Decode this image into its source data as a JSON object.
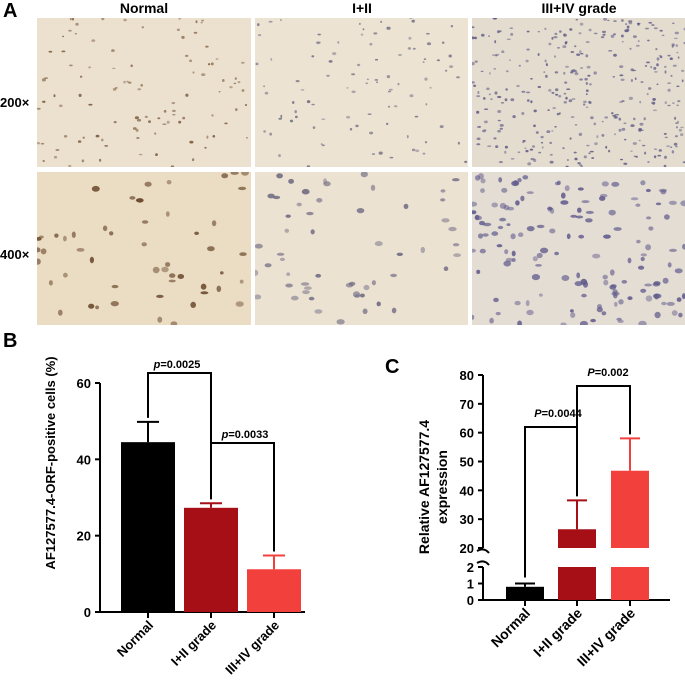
{
  "panel_a": {
    "letter": "A",
    "columns": [
      "Normal",
      "I+II",
      "III+IV grade"
    ],
    "rows": [
      "200×",
      "400×"
    ],
    "tiles": [
      {
        "column": "Normal",
        "magnification": "200×",
        "background": "#ece1cf",
        "cell_color": "#7a5a3c",
        "cell_density": 0.0032
      },
      {
        "column": "I+II",
        "magnification": "200×",
        "background": "#ece3d3",
        "cell_color": "#6e6c80",
        "cell_density": 0.003
      },
      {
        "column": "III+IV grade",
        "magnification": "200×",
        "background": "#e3dccf",
        "cell_color": "#5f5a86",
        "cell_density": 0.0105
      },
      {
        "column": "Normal",
        "magnification": "400×",
        "background": "#ebdcc4",
        "cell_color": "#6b4a2e",
        "cell_density": 0.0016
      },
      {
        "column": "I+II",
        "magnification": "400×",
        "background": "#ebe2d2",
        "cell_color": "#6d6880",
        "cell_density": 0.0017
      },
      {
        "column": "III+IV grade",
        "magnification": "400×",
        "background": "#e4ddd4",
        "cell_color": "#605a8c",
        "cell_density": 0.0046
      }
    ]
  },
  "panel_b": {
    "letter": "B",
    "ylabel": "AF127577.4-ORF-positive cells (%)",
    "p_labels": [
      {
        "prefix": "p",
        "text": "=0.0025"
      },
      {
        "prefix": "p",
        "text": "=0.0033"
      }
    ]
  },
  "panel_c": {
    "letter": "C",
    "ylabel_lines": [
      "Relative AF127577.4",
      "expression"
    ],
    "p_labels": [
      {
        "prefix": "P",
        "text": "=0.0044"
      },
      {
        "prefix": "P",
        "text": "=0.002"
      }
    ]
  },
  "chart_data": [
    {
      "type": "bar",
      "title": "",
      "xlabel": "",
      "ylabel": "AF127577.4-ORF-positive cells (%)",
      "categories": [
        "Normal",
        "I+II grade",
        "III+IV grade"
      ],
      "values": [
        44.5,
        27.3,
        11.2
      ],
      "errors": [
        5.3,
        1.2,
        3.6
      ],
      "colors": [
        "#000000",
        "#a50f15",
        "#f2413d"
      ],
      "ylim": [
        0,
        60
      ],
      "yticks": [
        0,
        20,
        40,
        60
      ],
      "comparisons": [
        {
          "from": "Normal",
          "to": "I+II grade",
          "p": "p=0.0025"
        },
        {
          "from": "I+II grade",
          "to": "III+IV grade",
          "p": "p=0.0033"
        }
      ],
      "grid": false,
      "legend": "none"
    },
    {
      "type": "bar",
      "title": "",
      "xlabel": "",
      "ylabel": "Relative AF127577.4 expression",
      "categories": [
        "Normal",
        "I+II grade",
        "III+IV grade"
      ],
      "values": [
        0.8,
        26.5,
        46.8
      ],
      "errors": [
        0.2,
        10.0,
        11.2
      ],
      "colors": [
        "#000000",
        "#a50f15",
        "#f2413d"
      ],
      "axis_break": {
        "lower": [
          0,
          2
        ],
        "upper": [
          20,
          80
        ]
      },
      "yticks": [
        0,
        1,
        2,
        20,
        30,
        40,
        50,
        60,
        70,
        80
      ],
      "comparisons": [
        {
          "from": "Normal",
          "to": "I+II grade",
          "p": "P=0.0044"
        },
        {
          "from": "I+II grade",
          "to": "III+IV grade",
          "p": "P=0.002"
        }
      ],
      "grid": false,
      "legend": "none"
    }
  ]
}
